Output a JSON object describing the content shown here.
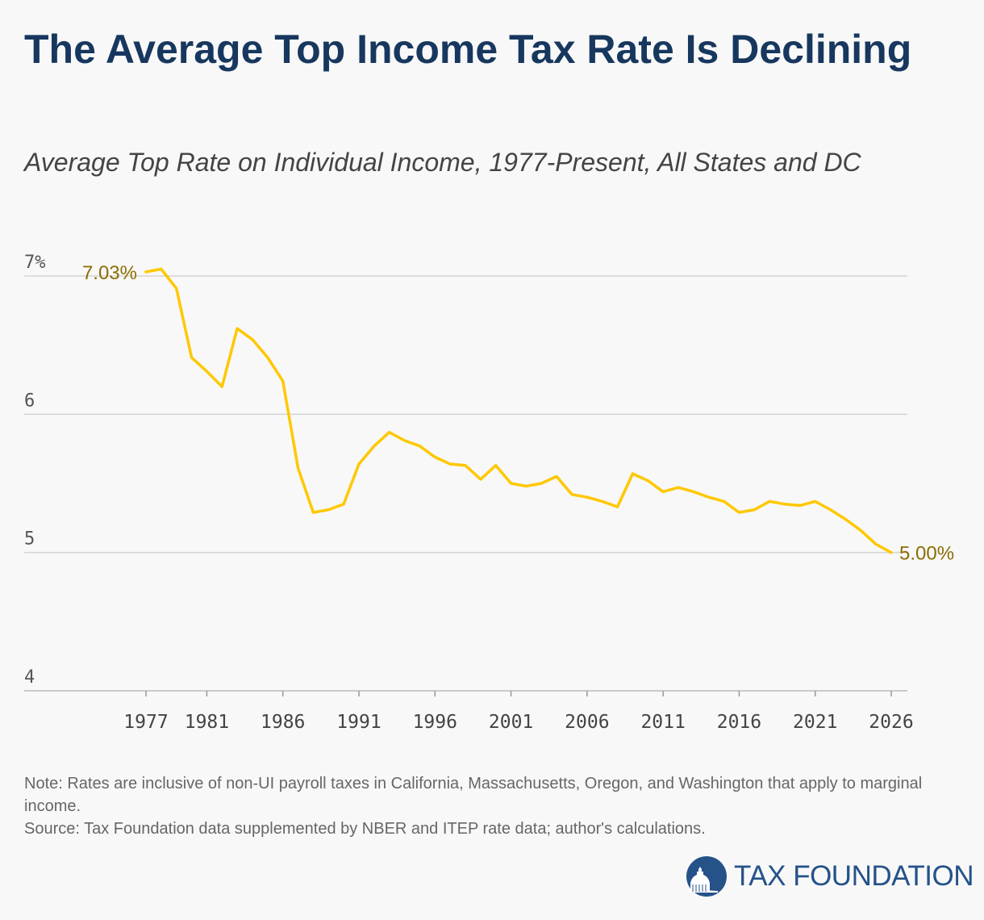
{
  "header": {
    "title": "The Average Top Income Tax Rate Is Declining",
    "subtitle": "Average Top Rate on Individual Income, 1977-Present, All States and DC"
  },
  "chart_data": {
    "type": "line",
    "title": "The Average Top Income Tax Rate Is Declining",
    "subtitle": "Average Top Rate on Individual Income, 1977-Present, All States and DC",
    "xlabel": "",
    "ylabel": "",
    "ylim": [
      4,
      7
    ],
    "xlim": [
      1977,
      2026
    ],
    "grid": "horizontal",
    "line_color": "#ffc800",
    "y_ticks": [
      "7%",
      "6",
      "5",
      "4"
    ],
    "y_tick_values": [
      7,
      6,
      5,
      4
    ],
    "x_ticks": [
      "1977",
      "1981",
      "1986",
      "1991",
      "1996",
      "2001",
      "2006",
      "2011",
      "2016",
      "2021",
      "2026"
    ],
    "x": [
      1977,
      1978,
      1979,
      1980,
      1981,
      1982,
      1983,
      1984,
      1985,
      1986,
      1987,
      1988,
      1989,
      1990,
      1991,
      1992,
      1993,
      1994,
      1995,
      1996,
      1997,
      1998,
      1999,
      2000,
      2001,
      2002,
      2003,
      2004,
      2005,
      2006,
      2007,
      2008,
      2009,
      2010,
      2011,
      2012,
      2013,
      2014,
      2015,
      2016,
      2017,
      2018,
      2019,
      2020,
      2021,
      2022,
      2023,
      2024,
      2025,
      2026
    ],
    "values": [
      7.03,
      7.05,
      6.91,
      6.41,
      6.31,
      6.2,
      6.62,
      6.54,
      6.41,
      6.24,
      5.61,
      5.29,
      5.31,
      5.35,
      5.64,
      5.77,
      5.87,
      5.81,
      5.77,
      5.69,
      5.64,
      5.63,
      5.53,
      5.63,
      5.5,
      5.48,
      5.5,
      5.55,
      5.42,
      5.4,
      5.37,
      5.33,
      5.57,
      5.52,
      5.44,
      5.47,
      5.44,
      5.4,
      5.37,
      5.29,
      5.31,
      5.37,
      5.35,
      5.34,
      5.37,
      5.31,
      5.24,
      5.16,
      5.06,
      5.0
    ],
    "annotations": [
      {
        "year": 1977,
        "text": "7.03%"
      },
      {
        "year": 2026,
        "text": "5.00%"
      }
    ]
  },
  "footer": {
    "note": "Note: Rates are inclusive of non-UI payroll taxes in California, Massachusetts, Oregon, and Washington that apply to marginal income.",
    "source": "Source: Tax Foundation data supplemented by NBER and ITEP rate data; author's calculations.",
    "logo_text": "TAX FOUNDATION",
    "logo_color": "#255289"
  }
}
